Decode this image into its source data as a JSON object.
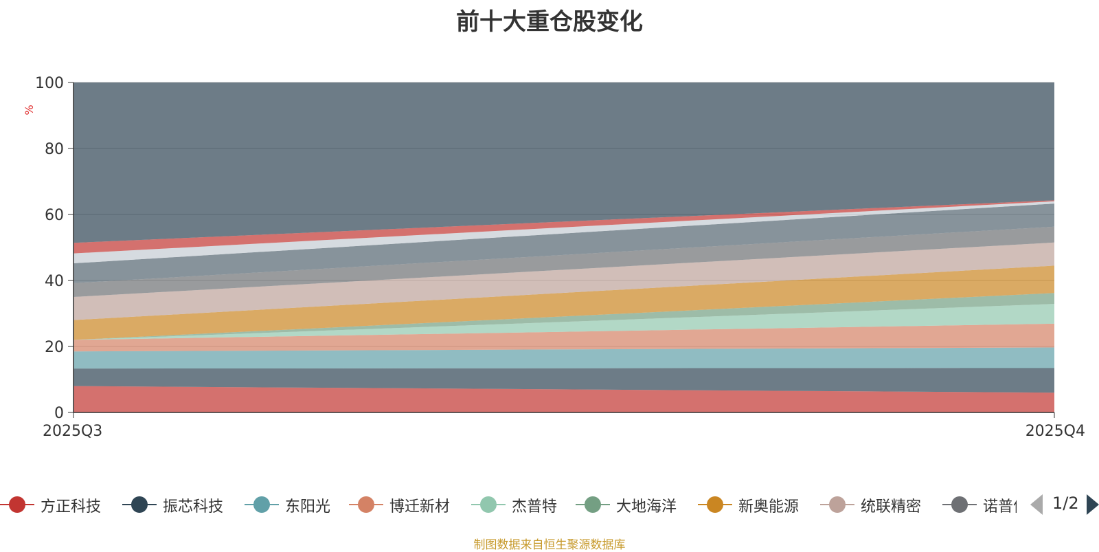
{
  "chart_data": {
    "type": "area",
    "stacked": true,
    "title": "前十大重仓股变化",
    "ylabel": "%",
    "xlabel": "",
    "ylim": [
      0,
      100
    ],
    "yticks": [
      0,
      20,
      40,
      60,
      80,
      100
    ],
    "categories": [
      "2025Q3",
      "2025Q4"
    ],
    "grid": true,
    "series": [
      {
        "name": "方正科技",
        "color": "#c23531",
        "values": [
          8.0,
          6.0
        ]
      },
      {
        "name": "振芯科技",
        "color": "#2f4554",
        "values": [
          5.3,
          7.5
        ]
      },
      {
        "name": "东阳光",
        "color": "#61a0a8",
        "values": [
          5.2,
          6.2
        ]
      },
      {
        "name": "博迁新材",
        "color": "#d48265",
        "values": [
          3.5,
          7.2
        ]
      },
      {
        "name": "杰普特",
        "color": "#91c7ae",
        "values": [
          0.0,
          6.0
        ]
      },
      {
        "name": "大地海洋",
        "color": "#749f83",
        "values": [
          0.0,
          3.3
        ]
      },
      {
        "name": "新奥能源",
        "color": "#ca8622",
        "values": [
          6.0,
          8.3
        ]
      },
      {
        "name": "统联精密",
        "color": "#bda29a",
        "values": [
          7.0,
          7.0
        ]
      },
      {
        "name": "诺普信",
        "color": "#6e7074",
        "values": [
          4.2,
          4.8
        ]
      },
      {
        "name": "",
        "color": "#546570",
        "values": [
          6.0,
          7.0
        ]
      },
      {
        "name": "",
        "color": "#c4ccd3",
        "values": [
          3.0,
          0.7
        ]
      },
      {
        "name": "",
        "color": "#c23531",
        "values": [
          3.2,
          0.3
        ]
      },
      {
        "name": "",
        "color": "#2f4554",
        "values": [
          48.6,
          35.7
        ]
      }
    ]
  },
  "legend_page": "1/2",
  "source": "制图数据来自恒生聚源数据库"
}
